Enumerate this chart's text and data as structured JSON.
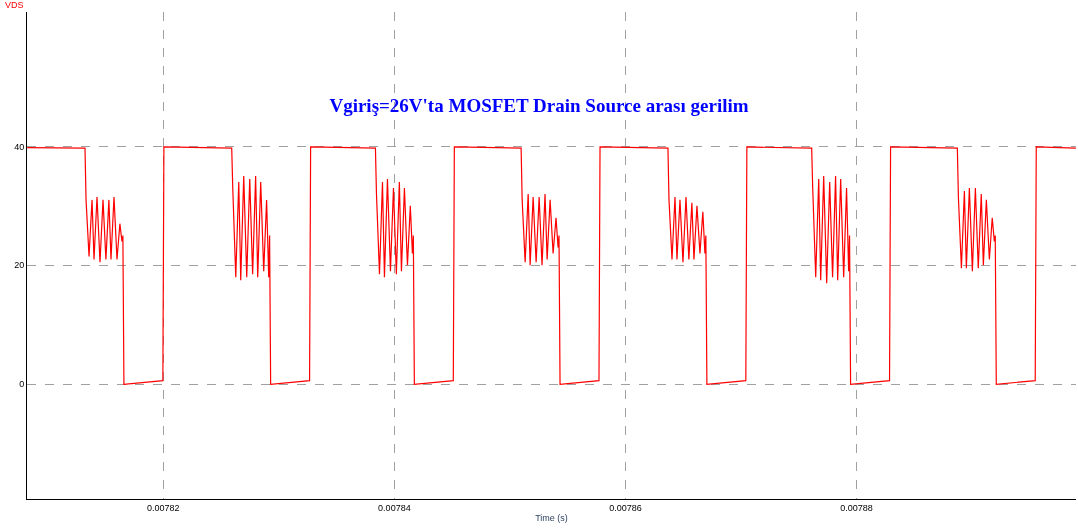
{
  "chart_data": {
    "type": "line",
    "title": "Vgiriş=26V'ta MOSFET Drain Source arası gerilim",
    "xlabel": "Time (s)",
    "x": [
      0.00780821,
      0.00781322,
      0.00781331,
      0.00781357,
      0.00781383,
      0.007814,
      0.00781426,
      0.00781452,
      0.00781478,
      0.00781503,
      0.00781529,
      0.00781547,
      0.00781573,
      0.00781599,
      0.00781624,
      0.00781642,
      0.0078165,
      0.00781659,
      0.00781996,
      0.00782005,
      0.00782592,
      0.00782601,
      0.00782627,
      0.00782653,
      0.0078267,
      0.00782696,
      0.00782722,
      0.00782748,
      0.00782773,
      0.00782799,
      0.00782817,
      0.00782843,
      0.00782869,
      0.00782894,
      0.00782912,
      0.0078292,
      0.00782929,
      0.00783266,
      0.00783275,
      0.00783836,
      0.00783845,
      0.00783871,
      0.00783897,
      0.00783914,
      0.0078394,
      0.00783966,
      0.00783992,
      0.00784017,
      0.00784043,
      0.00784061,
      0.00784087,
      0.00784113,
      0.00784138,
      0.00784156,
      0.00784164,
      0.00784173,
      0.0078451,
      0.00784519,
      0.00785097,
      0.00785106,
      0.00785132,
      0.00785158,
      0.00785175,
      0.00785201,
      0.00785227,
      0.00785253,
      0.00785278,
      0.00785304,
      0.00785322,
      0.00785348,
      0.00785374,
      0.00785399,
      0.00785417,
      0.00785425,
      0.00785434,
      0.00785771,
      0.0078578,
      0.00786368,
      0.00786377,
      0.00786403,
      0.00786429,
      0.00786446,
      0.00786472,
      0.00786498,
      0.00786524,
      0.00786549,
      0.00786575,
      0.00786593,
      0.00786619,
      0.00786645,
      0.0078667,
      0.00786688,
      0.00786696,
      0.00786705,
      0.00787042,
      0.00787051,
      0.00787612,
      0.00787621,
      0.00787647,
      0.00787673,
      0.0078769,
      0.00787716,
      0.00787742,
      0.00787768,
      0.00787793,
      0.00787819,
      0.00787837,
      0.00787863,
      0.00787889,
      0.00787914,
      0.00787932,
      0.0078794,
      0.00787949,
      0.00788286,
      0.00788295,
      0.00788873,
      0.00788882,
      0.00788908,
      0.00788934,
      0.00788951,
      0.00788977,
      0.00789003,
      0.00789029,
      0.00789054,
      0.0078908,
      0.00789098,
      0.00789124,
      0.0078915,
      0.00789175,
      0.00789193,
      0.00789201,
      0.0078921,
      0.00789547,
      0.00789556,
      0.00789899
    ],
    "series": [
      {
        "name": "VDS",
        "color": "#ff0000",
        "values": [
          39.8,
          39.7,
          31,
          21.5,
          31,
          21,
          31.5,
          20.5,
          31,
          21,
          31,
          21,
          31.5,
          21,
          27,
          24,
          25,
          0,
          0.6,
          39.9,
          39.7,
          33,
          18,
          34,
          17.5,
          35,
          18,
          34.5,
          18.5,
          35,
          18,
          34,
          19,
          31,
          18,
          25,
          0,
          0.6,
          39.9,
          39.7,
          32,
          18.5,
          34,
          18,
          34.5,
          19,
          33,
          18.5,
          34,
          19,
          33,
          20,
          30,
          22,
          25,
          0,
          0.6,
          39.9,
          39.7,
          31,
          20.5,
          32,
          20,
          31.5,
          20.5,
          31.5,
          20,
          32,
          21,
          31,
          22,
          28,
          23,
          25,
          0,
          0.6,
          39.9,
          39.7,
          31,
          21,
          31.5,
          21,
          31,
          20.5,
          31.5,
          21,
          30.5,
          21,
          30,
          22,
          29,
          22,
          25,
          0,
          0.6,
          39.9,
          39.7,
          33,
          18,
          34.5,
          17.5,
          35,
          17,
          34,
          18,
          35,
          17.5,
          34.5,
          18,
          33,
          19,
          25,
          0,
          0.6,
          39.9,
          39.7,
          31.5,
          19.5,
          32.5,
          19.5,
          33,
          19,
          33,
          19.5,
          32,
          20,
          31,
          21,
          28,
          24,
          25,
          0,
          0.6,
          39.9,
          39.7
        ]
      }
    ],
    "xlim": [
      0.0078082,
      0.007899
    ],
    "ylim": [
      -19.3,
      62.6
    ],
    "xticks": [
      0.00782,
      0.00784,
      0.00786,
      0.00788
    ],
    "yticks": [
      0,
      20,
      40
    ],
    "grid": true,
    "legend": false,
    "line_style": "solid",
    "marker": "none"
  }
}
